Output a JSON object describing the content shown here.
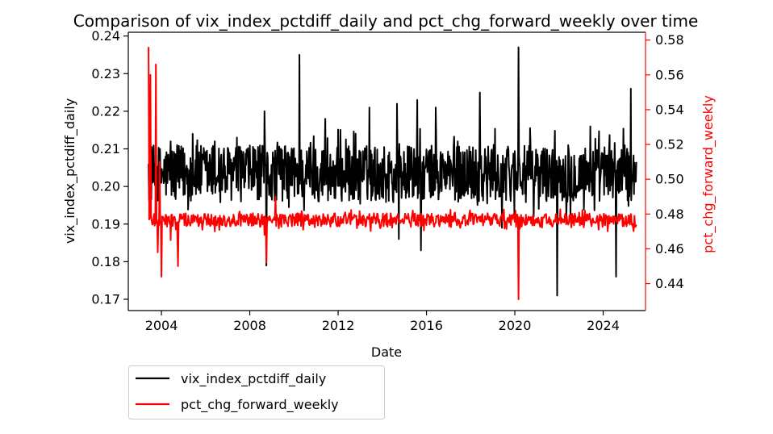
{
  "chart_data": {
    "type": "line",
    "title": "Comparison of vix_index_pctdiff_daily and pct_chg_forward_weekly over time",
    "xlabel": "Date",
    "ylabel": "vix_index_pctdiff_daily",
    "ylabel_right": "pct_chg_forward_weekly",
    "x_ticks": [
      "2004",
      "2008",
      "2012",
      "2016",
      "2020",
      "2024"
    ],
    "x_range": [
      "2002-07",
      "2025-12"
    ],
    "y_left": {
      "range": [
        0.167,
        0.241
      ],
      "ticks": [
        "0.17",
        "0.18",
        "0.19",
        "0.20",
        "0.21",
        "0.22",
        "0.23",
        "0.24"
      ]
    },
    "y_right": {
      "range": [
        0.4245,
        0.5845
      ],
      "ticks": [
        "0.44",
        "0.46",
        "0.48",
        "0.50",
        "0.52",
        "0.54",
        "0.56",
        "0.58"
      ]
    },
    "legend_placement": "below-left",
    "grid": false,
    "series": [
      {
        "name": "vix_index_pctdiff_daily",
        "axis": "left",
        "color": "#000000",
        "baseline": 0.2035,
        "spread": 0.0075,
        "x": [
          "2003-06",
          "2003-09",
          "2004-01",
          "2004-06",
          "2005-06",
          "2006-06",
          "2007-06",
          "2008-09",
          "2008-10",
          "2009-06",
          "2010-04",
          "2011-06",
          "2012-06",
          "2013-06",
          "2014-09",
          "2014-10",
          "2015-08",
          "2015-10",
          "2016-06",
          "2017-06",
          "2018-06",
          "2019-06",
          "2020-03",
          "2021-12",
          "2022-06",
          "2023-06",
          "2024-08",
          "2025-04",
          "2025-07"
        ],
        "y": [
          0.206,
          0.205,
          0.201,
          0.212,
          0.214,
          0.212,
          0.213,
          0.22,
          0.179,
          0.21,
          0.235,
          0.218,
          0.21,
          0.221,
          0.222,
          0.186,
          0.223,
          0.183,
          0.221,
          0.212,
          0.225,
          0.189,
          0.237,
          0.171,
          0.211,
          0.216,
          0.176,
          0.226,
          0.2065
        ]
      },
      {
        "name": "pct_chg_forward_weekly",
        "axis": "right",
        "color": "#ff0000",
        "baseline": 0.4765,
        "spread": 0.004,
        "x": [
          "2003-06",
          "2003-07",
          "2003-09",
          "2003-10",
          "2003-11",
          "2003-12",
          "2004-01",
          "2004-03",
          "2004-06",
          "2004-10",
          "2005-06",
          "2006-06",
          "2007-06",
          "2008-09",
          "2008-10",
          "2009-03",
          "2009-07",
          "2010-06",
          "2011-06",
          "2012-06",
          "2013-06",
          "2014-06",
          "2015-06",
          "2016-06",
          "2017-06",
          "2018-06",
          "2019-06",
          "2020-02",
          "2020-03",
          "2020-06",
          "2021-06",
          "2022-06",
          "2023-06",
          "2024-06",
          "2025-06",
          "2025-07"
        ],
        "y": [
          0.576,
          0.56,
          0.48,
          0.566,
          0.458,
          0.51,
          0.444,
          0.474,
          0.465,
          0.45,
          0.475,
          0.47,
          0.476,
          0.468,
          0.452,
          0.49,
          0.478,
          0.471,
          0.478,
          0.475,
          0.48,
          0.477,
          0.476,
          0.475,
          0.477,
          0.476,
          0.48,
          0.478,
          0.431,
          0.475,
          0.48,
          0.474,
          0.477,
          0.476,
          0.479,
          0.474
        ]
      }
    ]
  }
}
